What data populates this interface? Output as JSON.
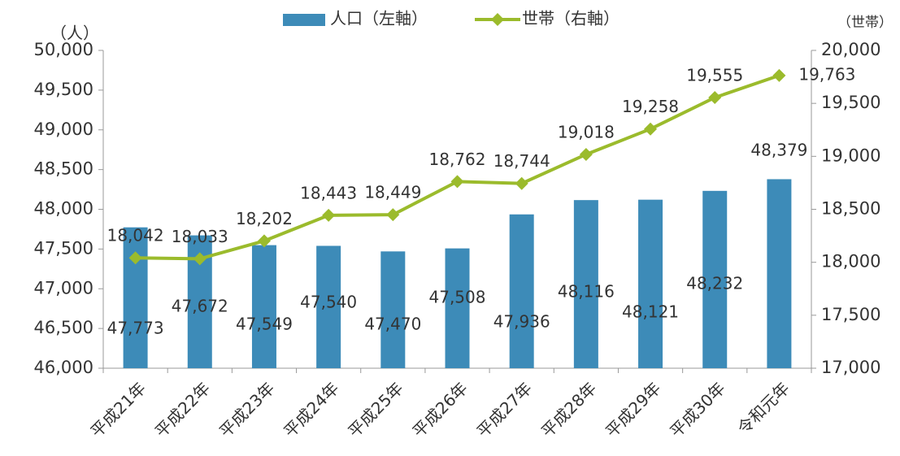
{
  "chart_data": {
    "type": "bar",
    "categories": [
      "平成21年",
      "平成22年",
      "平成23年",
      "平成24年",
      "平成25年",
      "平成26年",
      "平成27年",
      "平成28年",
      "平成29年",
      "平成30年",
      "令和元年"
    ],
    "series": [
      {
        "name": "人口（左軸）",
        "type": "bar",
        "color": "#3d8bb8",
        "values": [
          47773,
          47672,
          47549,
          47540,
          47470,
          47508,
          47936,
          48116,
          48121,
          48232,
          48379
        ],
        "value_labels": [
          "47,773",
          "47,672",
          "47,549",
          "47,540",
          "47,470",
          "47,508",
          "47,936",
          "48,116",
          "48,121",
          "48,232",
          "48,379"
        ]
      },
      {
        "name": "世帯（右軸）",
        "type": "line",
        "axis": "y2",
        "color": "#9bbb2c",
        "values": [
          18042,
          18033,
          18202,
          18443,
          18449,
          18762,
          18744,
          19018,
          19258,
          19555,
          19763
        ],
        "value_labels": [
          "18,042",
          "18,033",
          "18,202",
          "18,443",
          "18,449",
          "18,762",
          "18,744",
          "19,018",
          "19,258",
          "19,555",
          "19,763"
        ]
      }
    ],
    "y_axis_label": "（人）",
    "y2_axis_label": "（世帯）",
    "ylim": [
      46000,
      50000
    ],
    "yticks": [
      {
        "value": 46000,
        "label": "46,000"
      },
      {
        "value": 46500,
        "label": "46,500"
      },
      {
        "value": 47000,
        "label": "47,000"
      },
      {
        "value": 47500,
        "label": "47,500"
      },
      {
        "value": 48000,
        "label": "48,000"
      },
      {
        "value": 48500,
        "label": "48,500"
      },
      {
        "value": 49000,
        "label": "49,000"
      },
      {
        "value": 49500,
        "label": "49,500"
      },
      {
        "value": 50000,
        "label": "50,000"
      }
    ],
    "y2lim": [
      17000,
      20000
    ],
    "y2ticks": [
      {
        "value": 17000,
        "label": "17,000"
      },
      {
        "value": 17500,
        "label": "17,500"
      },
      {
        "value": 18000,
        "label": "18,000"
      },
      {
        "value": 18500,
        "label": "18,500"
      },
      {
        "value": 19000,
        "label": "19,000"
      },
      {
        "value": 19500,
        "label": "19,500"
      },
      {
        "value": 20000,
        "label": "20,000"
      }
    ],
    "legend": "top"
  }
}
